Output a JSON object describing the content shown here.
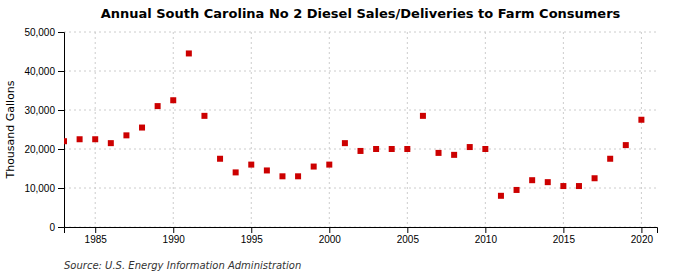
{
  "chart_data": {
    "type": "scatter",
    "title": "Annual South Carolina No 2 Diesel Sales/Deliveries to Farm Consumers",
    "ylabel": "Thousand Gallons",
    "annotations": [
      "Source: U.S. Energy Information Administration"
    ],
    "x": [
      1983,
      1984,
      1985,
      1986,
      1987,
      1988,
      1989,
      1990,
      1991,
      1992,
      1993,
      1994,
      1995,
      1996,
      1997,
      1998,
      1999,
      2000,
      2001,
      2002,
      2003,
      2004,
      2005,
      2006,
      2007,
      2008,
      2009,
      2010,
      2011,
      2012,
      2013,
      2014,
      2015,
      2016,
      2017,
      2018,
      2019,
      2020
    ],
    "values": [
      22000,
      22500,
      22500,
      21500,
      23500,
      25500,
      31000,
      32500,
      44500,
      28500,
      17500,
      14000,
      16000,
      14500,
      13000,
      13000,
      15500,
      16000,
      21500,
      19500,
      20000,
      20000,
      20000,
      28500,
      19000,
      18500,
      20500,
      20000,
      8000,
      9500,
      12000,
      11500,
      10500,
      10500,
      12500,
      17500,
      21000,
      27500
    ],
    "color": "#cc0000",
    "marker": "square",
    "xlim": [
      1983,
      2021
    ],
    "xticks": [
      1985,
      1990,
      1995,
      2000,
      2005,
      2010,
      2015,
      2020
    ],
    "ylim": [
      0,
      50000
    ],
    "yticks": [
      0,
      {
        "value": 10000,
        "label": "10,000"
      },
      {
        "value": 20000,
        "label": "20,000"
      },
      {
        "value": 30000,
        "label": "30,000"
      },
      {
        "value": 40000,
        "label": "40,000"
      },
      {
        "value": 50000,
        "label": "50,000"
      }
    ],
    "grid": true
  }
}
